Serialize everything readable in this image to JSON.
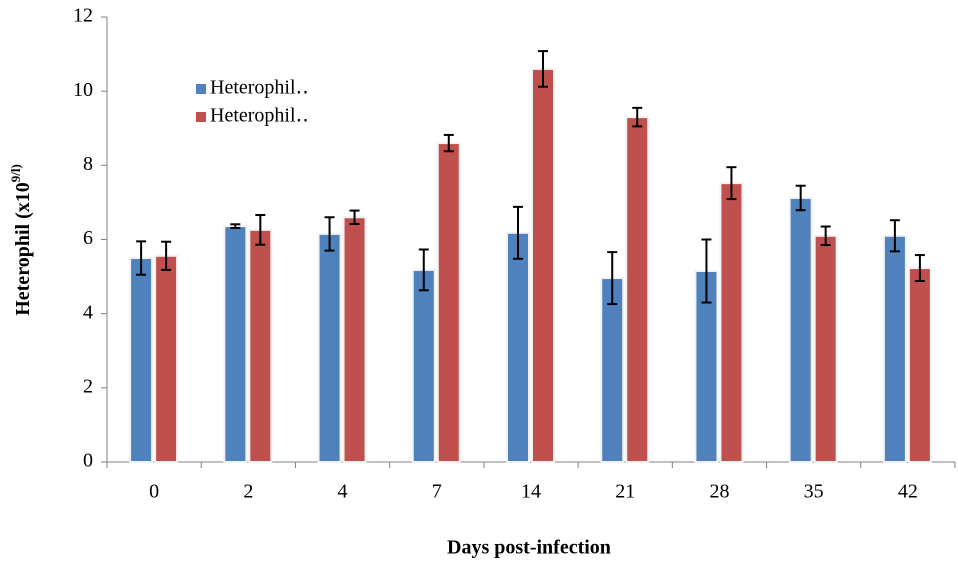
{
  "chart_data": {
    "type": "bar",
    "x_label": "Days post-infection",
    "y_label": "Heterophil (x10",
    "y_label_sup": "9/l)",
    "categories": [
      "0",
      "2",
      "4",
      "7",
      "14",
      "21",
      "28",
      "35",
      "42"
    ],
    "series": [
      {
        "name": "Heterophil‥",
        "color": "#4f81bd",
        "values": [
          5.5,
          6.36,
          6.15,
          5.18,
          6.18,
          4.96,
          5.15,
          7.12,
          6.1
        ],
        "errors": [
          0.45,
          0.05,
          0.45,
          0.55,
          0.7,
          0.7,
          0.85,
          0.33,
          0.42
        ]
      },
      {
        "name": "Heterophil‥",
        "color": "#c0504d",
        "values": [
          5.56,
          6.26,
          6.6,
          8.6,
          10.6,
          9.3,
          7.52,
          6.1,
          5.23
        ],
        "errors": [
          0.38,
          0.4,
          0.18,
          0.22,
          0.48,
          0.25,
          0.43,
          0.25,
          0.35
        ]
      }
    ],
    "ylim": [
      0,
      12
    ],
    "yticks": [
      0,
      2,
      4,
      6,
      8,
      10,
      12
    ],
    "grid": false
  }
}
